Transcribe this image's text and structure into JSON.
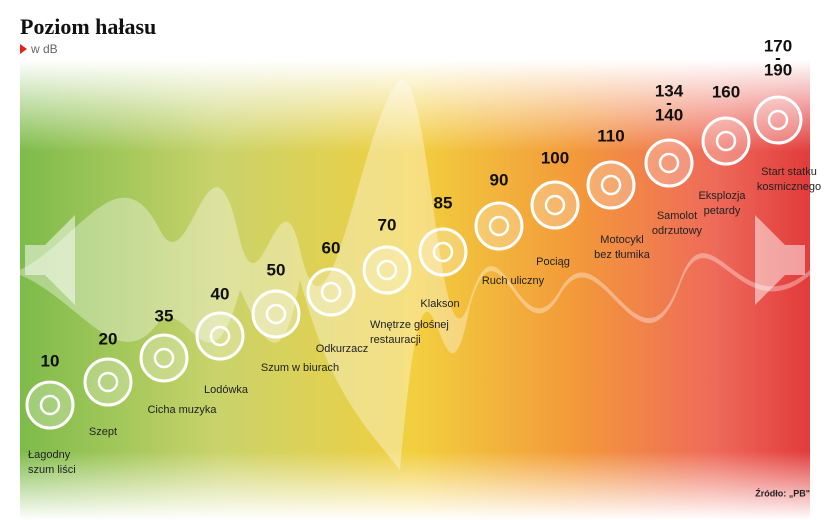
{
  "header": {
    "title": "Poziom hałasu",
    "subtitle": "w dB"
  },
  "items": [
    {
      "level": [
        "10"
      ],
      "label": [
        "Łagodny",
        "szum liści"
      ]
    },
    {
      "level": [
        "20"
      ],
      "label": [
        "Szept"
      ]
    },
    {
      "level": [
        "35"
      ],
      "label": [
        "Cicha muzyka"
      ]
    },
    {
      "level": [
        "40"
      ],
      "label": [
        "Lodówka"
      ]
    },
    {
      "level": [
        "50"
      ],
      "label": [
        "Szum w biurach"
      ]
    },
    {
      "level": [
        "60"
      ],
      "label": [
        "Odkurzacz"
      ]
    },
    {
      "level": [
        "70"
      ],
      "label": [
        "Wnętrze głośnej",
        "restauracji"
      ]
    },
    {
      "level": [
        "85"
      ],
      "label": [
        "Klakson"
      ]
    },
    {
      "level": [
        "90"
      ],
      "label": [
        "Ruch uliczny"
      ]
    },
    {
      "level": [
        "100"
      ],
      "label": [
        "Pociąg"
      ]
    },
    {
      "level": [
        "110"
      ],
      "label": [
        "Motocykl",
        "bez tłumika"
      ]
    },
    {
      "level": [
        "134",
        "-",
        "140"
      ],
      "label": [
        "Samolot",
        "odrzutowy"
      ]
    },
    {
      "level": [
        "160"
      ],
      "label": [
        "Eksplozja",
        "petardy"
      ]
    },
    {
      "level": [
        "170",
        "-",
        "190"
      ],
      "label": [
        "Start statku",
        "kosmicznego"
      ]
    }
  ],
  "source": "Źródło: „PB\""
}
